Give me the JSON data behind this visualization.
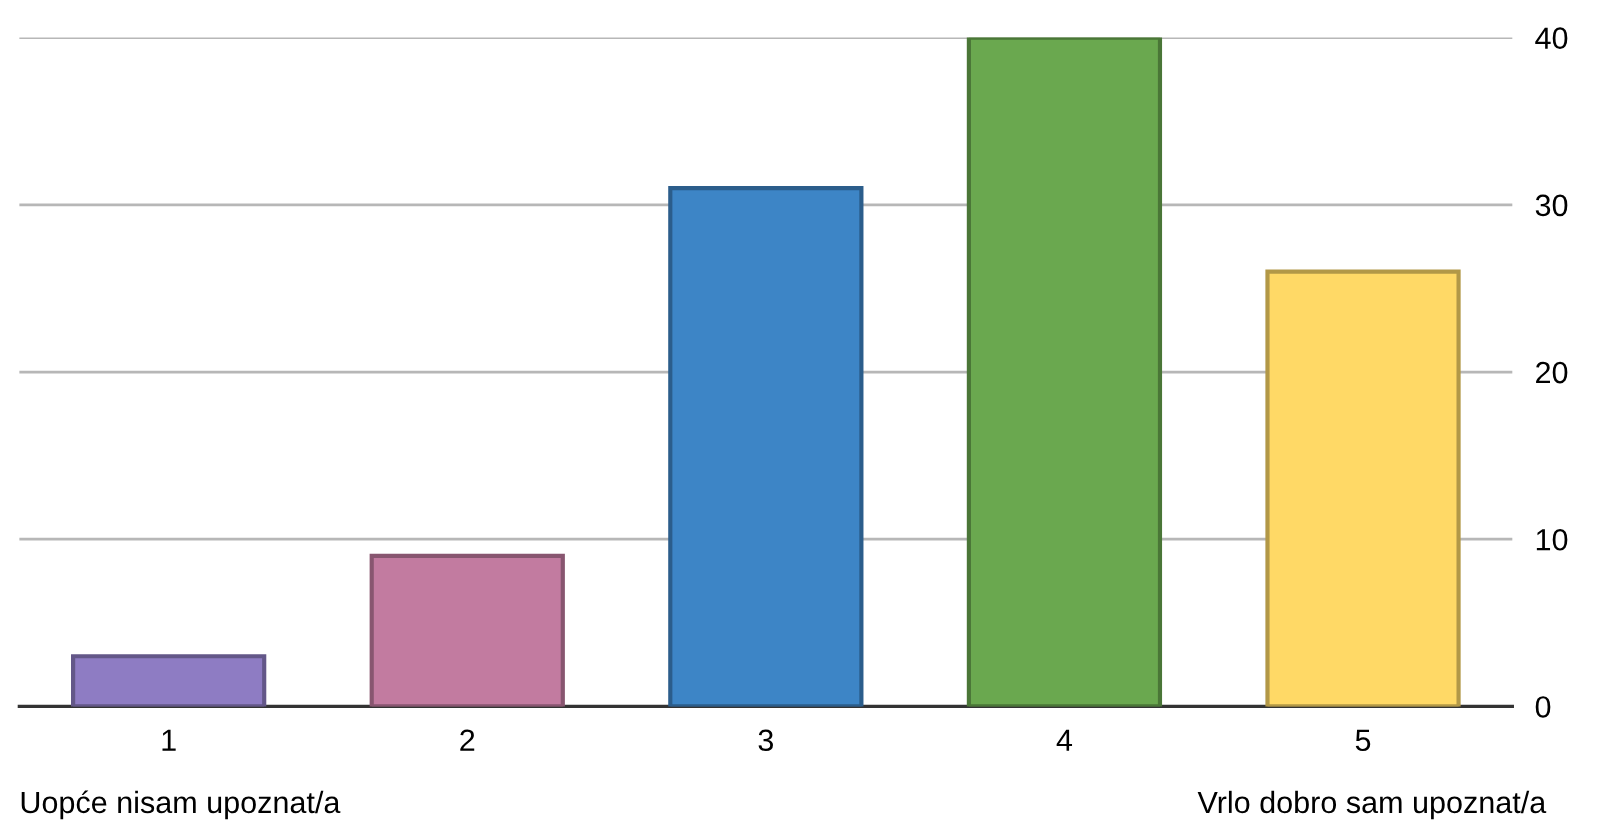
{
  "chart_data": {
    "type": "bar",
    "categories": [
      "1",
      "2",
      "3",
      "4",
      "5"
    ],
    "values": [
      3,
      9,
      31,
      40,
      26
    ],
    "colors": [
      "#8e7cc3",
      "#c27ba0",
      "#3d85c6",
      "#6aa84f",
      "#ffd966"
    ],
    "ylim": [
      0,
      40
    ],
    "yticks": [
      0,
      10,
      20,
      30,
      40
    ],
    "grid": "y",
    "annotations": [
      "Uopće nisam upoznat/a",
      "Vrlo dobro sam upoznat/a"
    ]
  }
}
